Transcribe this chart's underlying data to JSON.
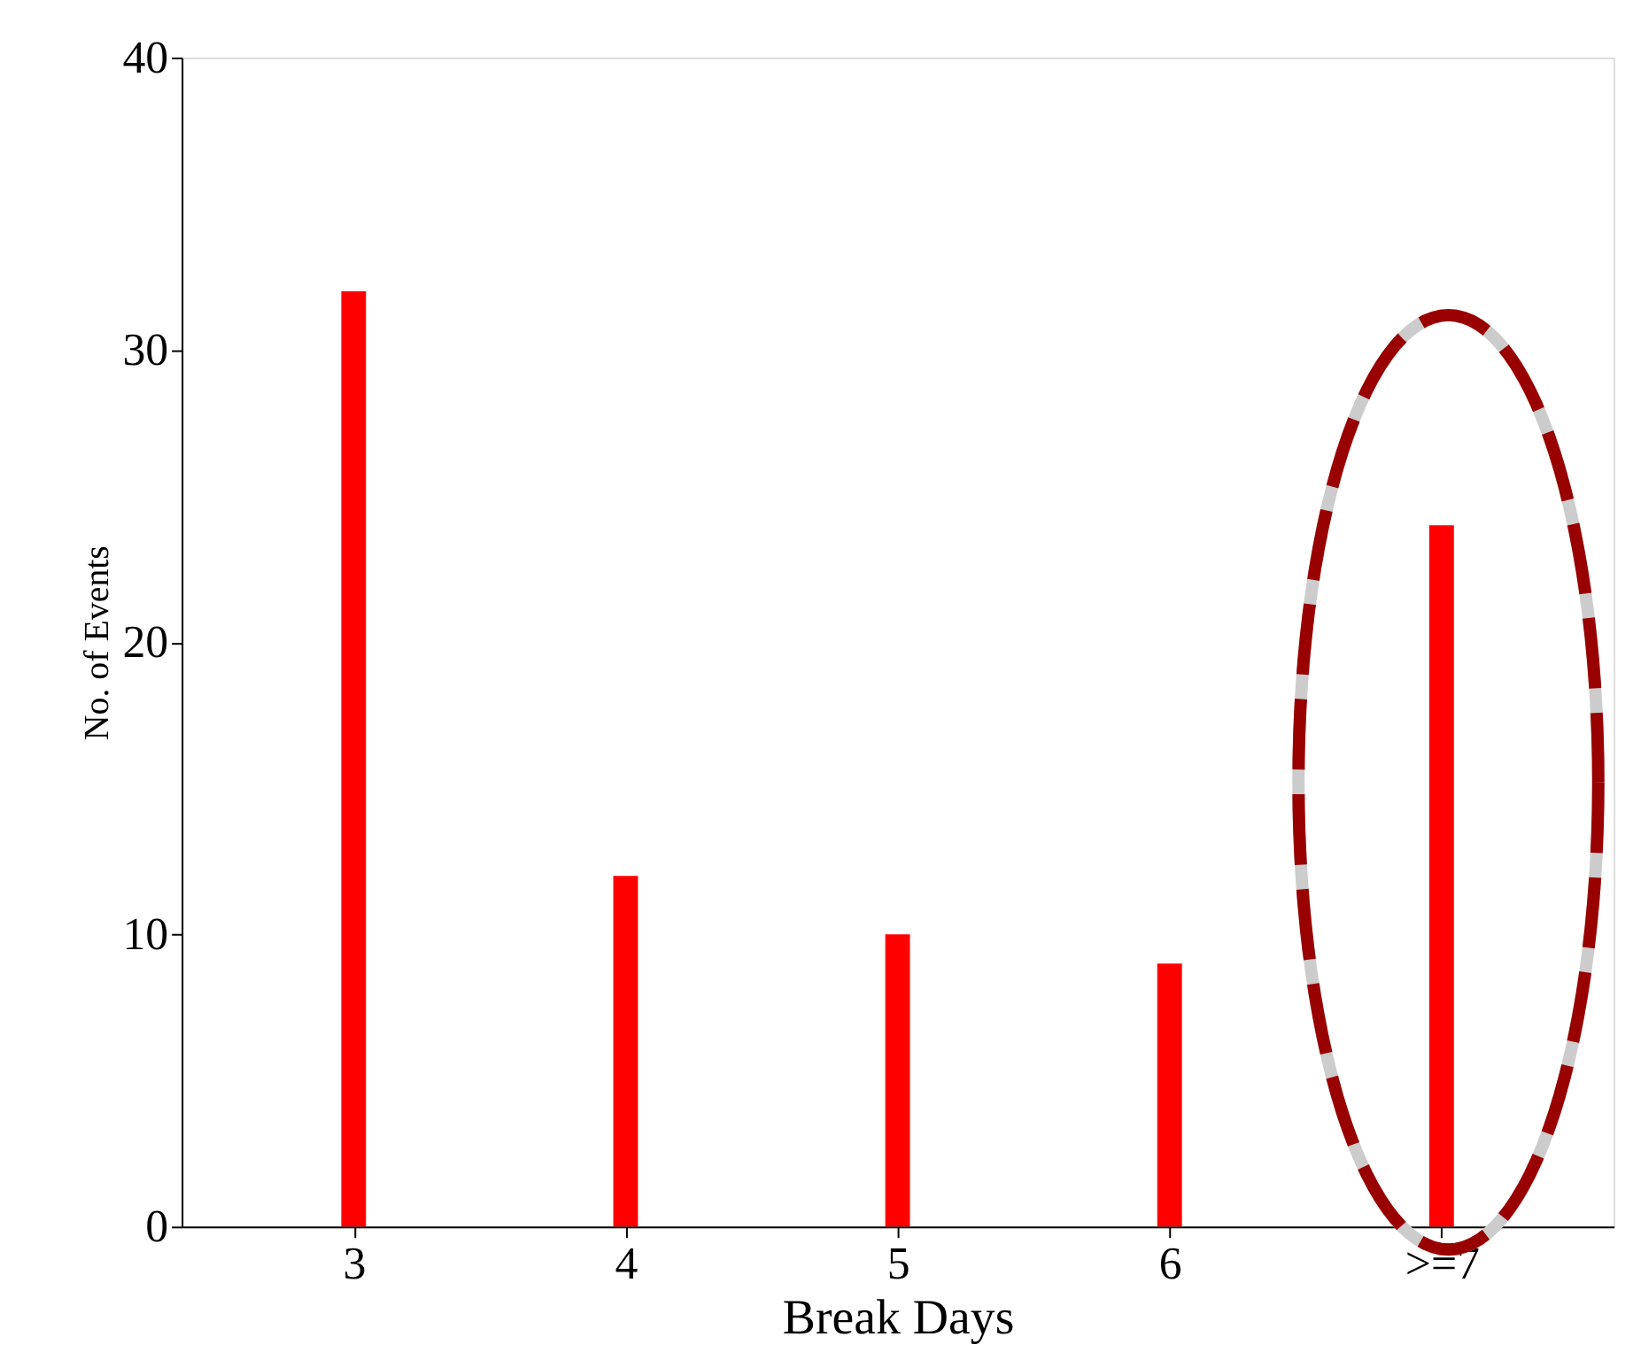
{
  "chart_data": {
    "type": "bar",
    "xlabel": "Break Days",
    "ylabel": "No. of Events",
    "categories": [
      "3",
      "4",
      "5",
      "6",
      ">=7"
    ],
    "values": [
      32,
      12,
      10,
      9,
      24
    ],
    "color": "#ff0000",
    "ylim": [
      0,
      40
    ],
    "yticks": [
      0,
      10,
      20,
      30,
      40
    ],
    "grid": false
  }
}
